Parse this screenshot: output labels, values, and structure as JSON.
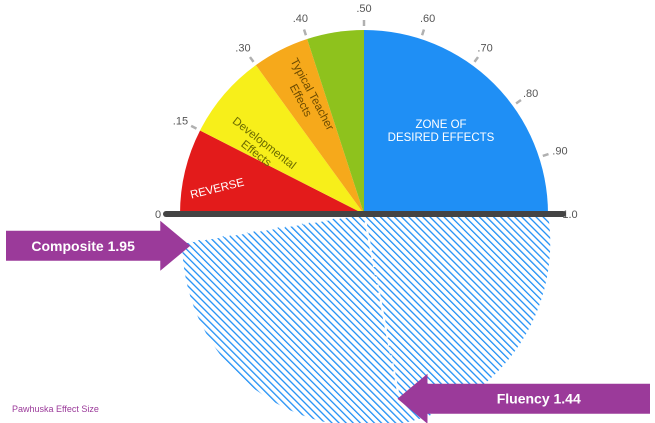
{
  "chart_data": {
    "type": "gauge",
    "scale": {
      "min": 0,
      "max": 1.0,
      "ticks": [
        "0",
        ".15",
        ".30",
        ".40",
        ".50",
        ".60",
        ".70",
        ".80",
        ".90",
        "1.0"
      ],
      "tick_values": [
        0,
        0.15,
        0.3,
        0.4,
        0.5,
        0.6,
        0.7,
        0.8,
        0.9,
        1.0
      ]
    },
    "zones": [
      {
        "label": "REVERSE",
        "from": 0,
        "to": 0.15,
        "color": "#e31b1b",
        "text_color": "#ffffff"
      },
      {
        "label": "Developmental Effects",
        "from": 0.15,
        "to": 0.3,
        "color": "#f7ef1a",
        "text_color": "#6b6b00"
      },
      {
        "label": "Typical Teacher Effects",
        "from": 0.3,
        "to": 0.4,
        "color": "#f6a91b",
        "text_color": "#6b4a00"
      },
      {
        "label": "",
        "from": 0.4,
        "to": 0.5,
        "color": "#8ec21d",
        "text_color": "#ffffff"
      },
      {
        "label": "ZONE OF DESIRED EFFECTS",
        "from": 0.5,
        "to": 1.0,
        "color": "#1f8ff5",
        "text_color": "#ffffff"
      }
    ],
    "effects": [
      {
        "name": "Composite",
        "value": 1.95,
        "label": "Composite 1.95"
      },
      {
        "name": "Fluency",
        "value": 1.44,
        "label": "Fluency 1.44"
      }
    ],
    "hatch_color": "#1f8ff5",
    "arrow_color": "#9b3a9a",
    "baseline_color": "#444444"
  },
  "caption": "Pawhuska Effect Size",
  "caption_color": "#9b3a9a"
}
